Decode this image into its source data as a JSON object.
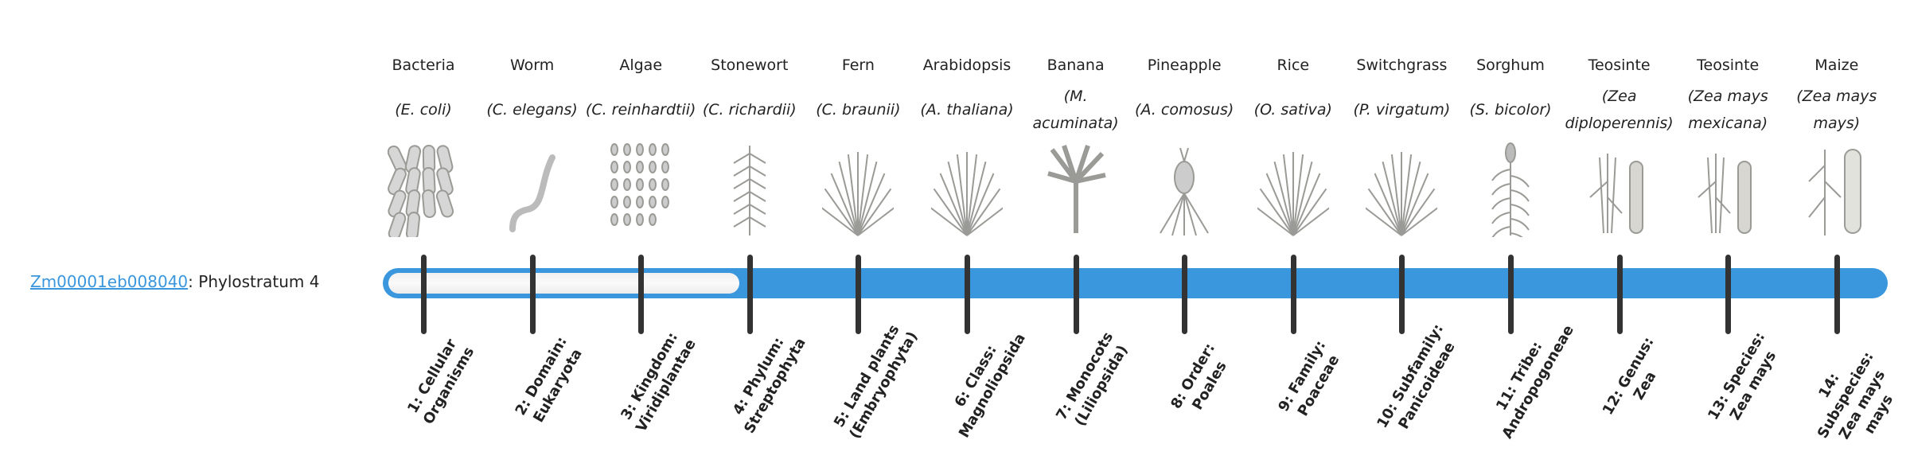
{
  "gene": {
    "id": "Zm00001eb008040",
    "separator": ": ",
    "label": "Phylostratum 4"
  },
  "stratum_value": 4,
  "stratum_total": 14,
  "colors": {
    "accent": "#3a96dd",
    "tick": "#333333",
    "empty": "#f4f4f4"
  },
  "organisms": [
    {
      "name": "Bacteria",
      "sci": "(E. coli)",
      "icon": "bacteria-icon"
    },
    {
      "name": "Worm",
      "sci": "(C. elegans)",
      "icon": "worm-icon"
    },
    {
      "name": "Algae",
      "sci": "(C. reinhardtii)",
      "icon": "algae-icon"
    },
    {
      "name": "Stonewort",
      "sci": "(C. richardii)",
      "icon": "stonewort-icon"
    },
    {
      "name": "Fern",
      "sci": "(C. braunii)",
      "icon": "fern-icon"
    },
    {
      "name": "Arabidopsis",
      "sci": "(A. thaliana)",
      "icon": "arabidopsis-icon"
    },
    {
      "name": "Banana",
      "sci": "(M. acuminata)",
      "icon": "banana-icon"
    },
    {
      "name": "Pineapple",
      "sci": "(A. comosus)",
      "icon": "pineapple-icon"
    },
    {
      "name": "Rice",
      "sci": "(O. sativa)",
      "icon": "rice-icon"
    },
    {
      "name": "Switchgrass",
      "sci": "(P. virgatum)",
      "icon": "switchgrass-icon"
    },
    {
      "name": "Sorghum",
      "sci": "(S. bicolor)",
      "icon": "sorghum-icon"
    },
    {
      "name": "Teosinte",
      "sci": "(Zea diploperennis)",
      "icon": "teosinte-icon"
    },
    {
      "name": "Teosinte",
      "sci": "(Zea mays mexicana)",
      "icon": "teosinte-icon"
    },
    {
      "name": "Maize",
      "sci": "(Zea mays mays)",
      "icon": "maize-icon"
    }
  ],
  "strata": [
    "1: Cellular Organisms",
    "2: Domain: Eukaryota",
    "3: Kingdom: Viridiplantae",
    "4: Phylum: Streptophyta",
    "5: Land plants (Embryophyta)",
    "6: Class: Magnoliopsida",
    "7: Monocots (Liliopsida)",
    "8: Order: Poales",
    "9: Family: Poaceae",
    "10: Subfamily: Panicoideae",
    "11: Tribe: Andropogoneae",
    "12: Genus: Zea",
    "13: Species: Zea mays",
    "14: Subspecies: Zea mays mays"
  ]
}
